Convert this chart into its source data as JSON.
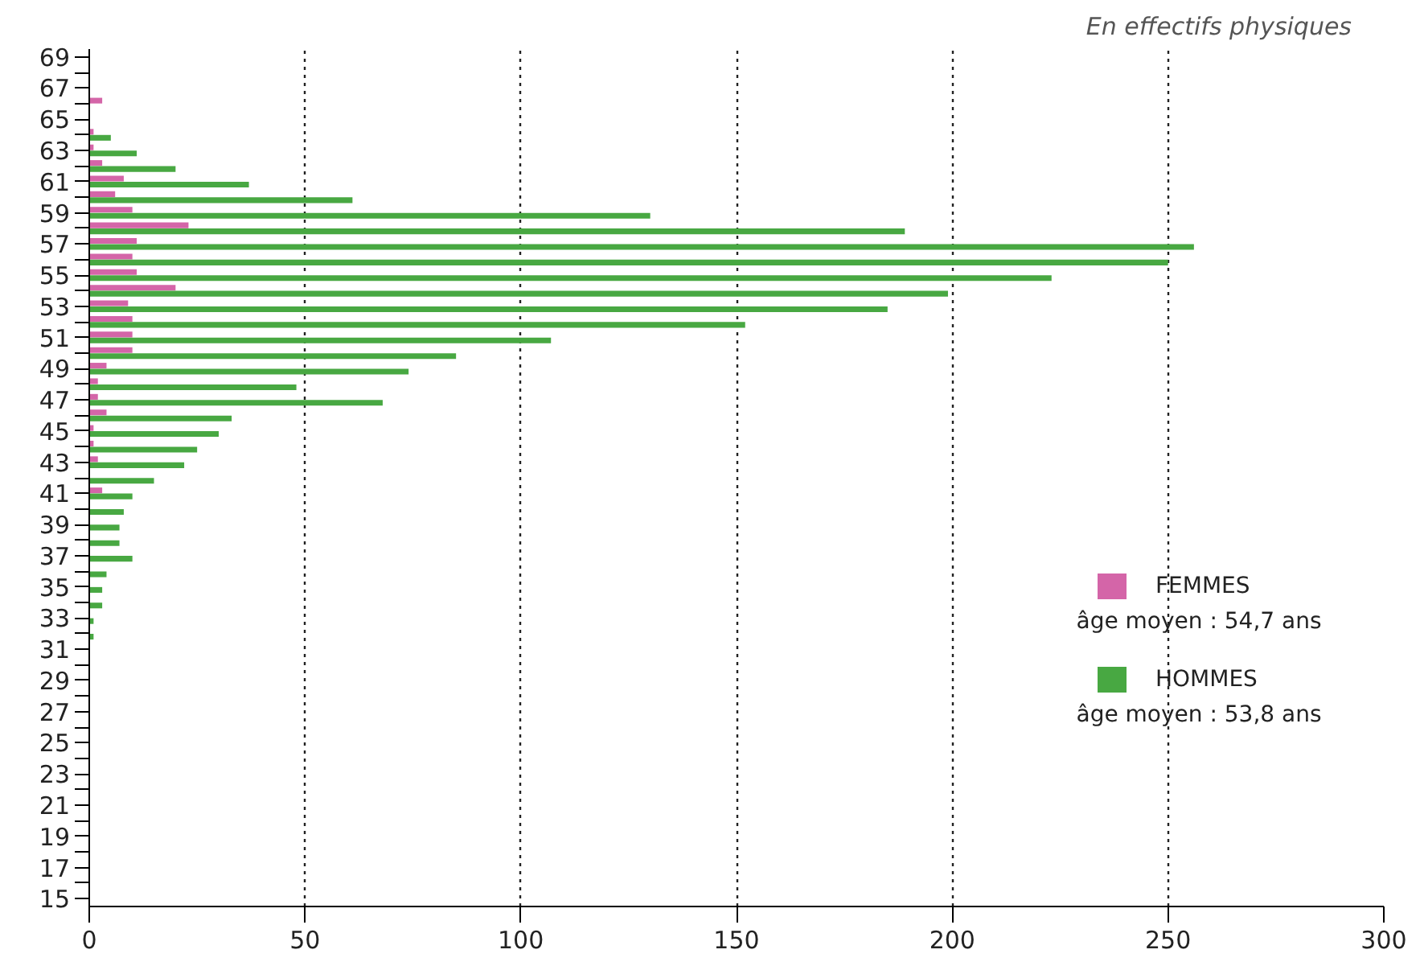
{
  "chart_data": {
    "type": "bar",
    "orientation": "horizontal",
    "subtitle": "En effectifs physiques",
    "categories": [
      "69",
      null,
      "67",
      null,
      "65",
      null,
      "63",
      null,
      "61",
      null,
      "59",
      null,
      "57",
      null,
      "55",
      null,
      "53",
      null,
      "51",
      null,
      "49",
      null,
      "47",
      null,
      "45",
      null,
      "43",
      null,
      "41",
      null,
      "39",
      null,
      "37",
      null,
      "35",
      null,
      "33",
      null,
      "31",
      null,
      "29",
      null,
      "27",
      null,
      "25",
      null,
      "23",
      null,
      "21",
      null,
      "19",
      null,
      "17",
      null,
      "15"
    ],
    "series": [
      {
        "name": "FEMMES",
        "color": "#d465a8",
        "values": [
          0,
          0,
          0,
          3,
          0,
          1,
          1,
          3,
          8,
          6,
          10,
          23,
          11,
          10,
          11,
          20,
          9,
          10,
          10,
          10,
          4,
          2,
          2,
          4,
          1,
          1,
          2,
          0,
          3,
          0,
          0,
          0,
          0,
          0,
          0,
          0,
          0,
          0,
          0,
          0,
          0,
          0,
          0,
          0,
          0,
          0,
          0,
          0,
          0,
          0,
          0,
          0,
          0,
          0,
          0
        ]
      },
      {
        "name": "HOMMES",
        "color": "#48a842",
        "values": [
          0,
          0,
          0,
          0,
          0,
          5,
          11,
          20,
          37,
          61,
          130,
          189,
          256,
          250,
          223,
          199,
          185,
          152,
          107,
          85,
          74,
          48,
          68,
          33,
          30,
          25,
          22,
          15,
          10,
          8,
          7,
          7,
          10,
          4,
          3,
          3,
          1,
          1,
          0,
          0,
          0,
          0,
          0,
          0,
          0,
          0,
          0,
          0,
          0,
          0,
          0,
          0,
          0,
          0,
          0
        ]
      }
    ],
    "annotations": [
      "âge moyen : 54,7 ans",
      "âge moyen : 53,8 ans"
    ],
    "xlim": [
      0,
      300
    ],
    "xticks": [
      0,
      50,
      100,
      150,
      200,
      250,
      300
    ],
    "grid": "x",
    "legend": "right"
  }
}
